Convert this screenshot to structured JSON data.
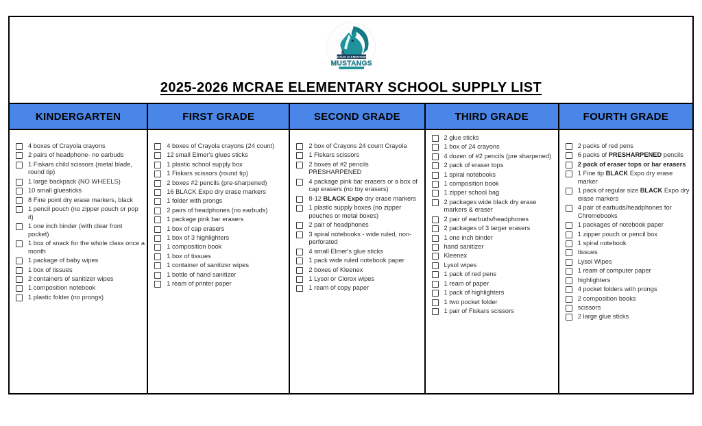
{
  "title": "2025-2026 MCRAE ELEMENTARY SCHOOL SUPPLY LIST",
  "logo": {
    "banner_top": "McRAE ELEMENTARY",
    "banner_main": "MUSTANGS"
  },
  "colors": {
    "header_bg": "#4a86e8",
    "border": "#000000",
    "logo_teal": "#1e939c",
    "logo_navy": "#1c3f5e"
  },
  "columns": [
    {
      "header": "KINDERGARTEN",
      "items": [
        "4 boxes of Crayola crayons",
        "2 pairs of headphone- no earbuds",
        "1 Fiskars child scissors (metal blade, round tip)",
        "1 large backpack (NO WHEELS)",
        "10 small gluesticks",
        "8 Fine point dry erase markers, black",
        "1 pencil pouch (no zipper pouch or pop it)",
        "1 one inch binder (with clear front pocket)",
        "1 box of snack for the whole class once a month",
        "1 package of baby wipes",
        "1 box of tissues",
        "2 containers of sanitizer wipes",
        "1 composition notebook",
        "1 plastic folder (no prongs)"
      ]
    },
    {
      "header": "FIRST GRADE",
      "items": [
        "4 boxes of Crayola crayons (24 count)",
        "12 small Elmer's glues sticks",
        "1 plastic school supply box",
        "1 Fiskars scissors (round tip)",
        "2 boxes #2 pencils (pre-sharpened)",
        "16 BLACK Expo dry erase markers",
        "1 folder with prongs",
        "2 pairs of headphones (no earbuds)",
        "1 package pink bar erasers",
        "1 box of cap erasers",
        "1 box of 3 highlighters",
        "1 composition book",
        "1 box of tissues",
        "1 container of sanitizer wipes",
        "1 bottle of hand sanitizer",
        "1 ream of printer paper"
      ]
    },
    {
      "header": "SECOND GRADE",
      "items": [
        "2 box of Crayons 24 count Crayola",
        "1 Fiskars scissors",
        "2 boxes of #2 pencils PRESHARPENED",
        "4 package pink bar erasers or a box of cap erasers (no toy erasers)",
        "8-12 **BLACK Expo** dry erase markers",
        "1 plastic supply boxes (no zipper pouches or metal boxes)",
        "2 pair of headphones",
        "3 spiral notebooks - wide ruled, non-perforated",
        "4 small Elmer's glue sticks",
        "1 pack wide ruled notebook paper",
        "2 boxes of Kleenex",
        "1 Lysol or Clorox wipes",
        "1 ream of copy paper"
      ]
    },
    {
      "header": "THIRD GRADE",
      "items": [
        "2 glue sticks",
        "1 box of 24 crayons",
        "4 dozen of #2 pencils (pre sharpened)",
        "2 pack of eraser tops",
        "1 spiral notebooks",
        "1 composition book",
        "1 zipper school bag",
        "2 packages wide black dry erase markers & eraser",
        "2 pair of earbuds/headphones",
        "2 packages of 3 larger erasers",
        "1 one inch binder",
        "hand sanitizer",
        "Kleenex",
        "Lysol wipes",
        "1 pack of red pens",
        "1 ream of paper",
        "1 pack of highlighters",
        "1 two pocket folder",
        "1 pair of Fiskars scissors"
      ]
    },
    {
      "header": "FOURTH GRADE",
      "items": [
        "2 packs of red pens",
        "6 packs of **PRESHARPENED** pencils",
        "**2 pack of eraser tops or bar erasers**",
        "1 Fine tip **BLACK** Expo dry erase marker",
        "1 pack of regular size **BLACK** Expo dry erase markers",
        "4 pair of earbuds/headphones for Chromebooks",
        "1 packages of notebook paper",
        "1 zipper pouch or pencil box",
        "1 spiral notebook",
        "tissues",
        "Lysol Wipes",
        "1 ream of computer paper",
        "highlighters",
        "4 pocket folders with prongs",
        "2 composition books",
        "scissors",
        "2 large glue sticks"
      ]
    }
  ]
}
